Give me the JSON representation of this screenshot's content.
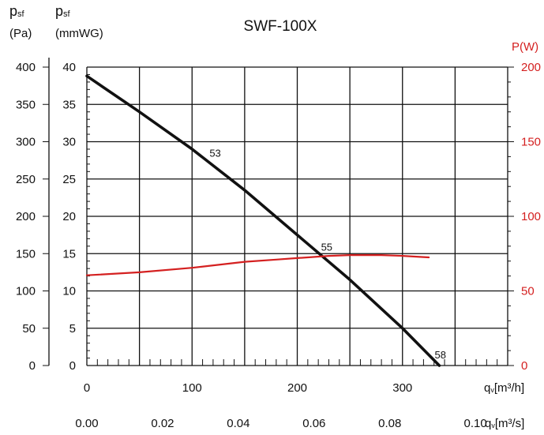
{
  "chart_data": {
    "type": "line",
    "title": "SWF-100X",
    "colors": {
      "pressure": "#111111",
      "power": "#d42020",
      "grid": "#111111"
    },
    "left_axis_pa": {
      "label_main": "p",
      "label_sub": "sf",
      "label_unit": "(Pa)",
      "ylim": [
        0,
        400
      ],
      "ticks": [
        "0",
        "50",
        "100",
        "150",
        "200",
        "250",
        "300",
        "350",
        "400"
      ]
    },
    "left_axis_mmwg": {
      "label_main": "p",
      "label_sub": "sf",
      "label_unit": "(mmWG)",
      "ylim": [
        0,
        40
      ],
      "ticks": [
        "0",
        "5",
        "10",
        "15",
        "20",
        "25",
        "30",
        "35",
        "40"
      ]
    },
    "right_axis_power": {
      "label": "P(W)",
      "ylim": [
        0,
        200
      ],
      "ticks": [
        "0",
        "50",
        "100",
        "150",
        "200"
      ]
    },
    "x_axis_m3h": {
      "label_main": "q",
      "label_sub": "v",
      "label_unit": "[m³/h]",
      "xlim": [
        0,
        400
      ],
      "ticks": [
        "0",
        "100",
        "200",
        "300"
      ]
    },
    "x_axis_m3s": {
      "label_main": "q",
      "label_sub": "v",
      "label_unit": "[m³/s]",
      "ticks": [
        "0.00",
        "0.02",
        "0.04",
        "0.06",
        "0.08",
        "0.10"
      ]
    },
    "series": [
      {
        "axis": "mmWG",
        "x": [
          0,
          50,
          100,
          150,
          200,
          250,
          300,
          335
        ],
        "y": [
          38.8,
          34.0,
          29.0,
          23.5,
          17.5,
          11.5,
          5.0,
          0
        ]
      },
      {
        "axis": "W",
        "x": [
          0,
          50,
          100,
          150,
          180,
          200,
          230,
          250,
          280,
          300,
          325
        ],
        "y": [
          60.5,
          62.5,
          65.5,
          69.5,
          71,
          72,
          73.5,
          74,
          74,
          73.5,
          72.5
        ]
      }
    ],
    "annotations": [
      {
        "text": "53",
        "x": 122,
        "y": 28.5
      },
      {
        "text": "55",
        "x": 228,
        "y": 15.9
      },
      {
        "text": "58",
        "x": 336,
        "y": 1.5
      }
    ]
  }
}
